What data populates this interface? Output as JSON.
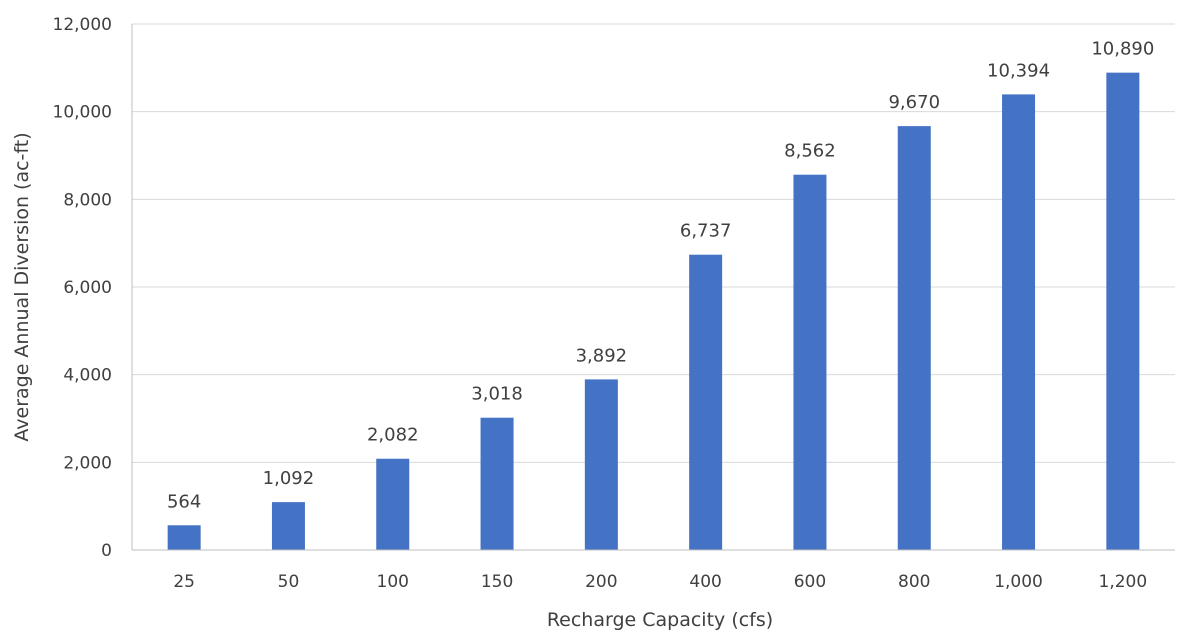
{
  "chart_data": {
    "type": "bar",
    "title": "",
    "xlabel": "Recharge Capacity (cfs)",
    "ylabel": "Average Annual Diversion (ac-ft)",
    "categories": [
      "25",
      "50",
      "100",
      "150",
      "200",
      "400",
      "600",
      "800",
      "1,000",
      "1,200"
    ],
    "values": [
      564,
      1092,
      2082,
      3018,
      3892,
      6737,
      8562,
      9670,
      10394,
      10890
    ],
    "data_labels": [
      "564",
      "1,092",
      "2,082",
      "3,018",
      "3,892",
      "6,737",
      "8,562",
      "9,670",
      "10,394",
      "10,890"
    ],
    "ylim": [
      0,
      12000
    ],
    "yticks": [
      0,
      2000,
      4000,
      6000,
      8000,
      10000,
      12000
    ],
    "ytick_labels": [
      "0",
      "2,000",
      "4,000",
      "6,000",
      "8,000",
      "10,000",
      "12,000"
    ],
    "grid": true,
    "legend": "none",
    "colors": {
      "bar": "#4472C4",
      "grid": "#D9D9D9",
      "axis": "#BFBFBF",
      "text": "#404040"
    }
  }
}
